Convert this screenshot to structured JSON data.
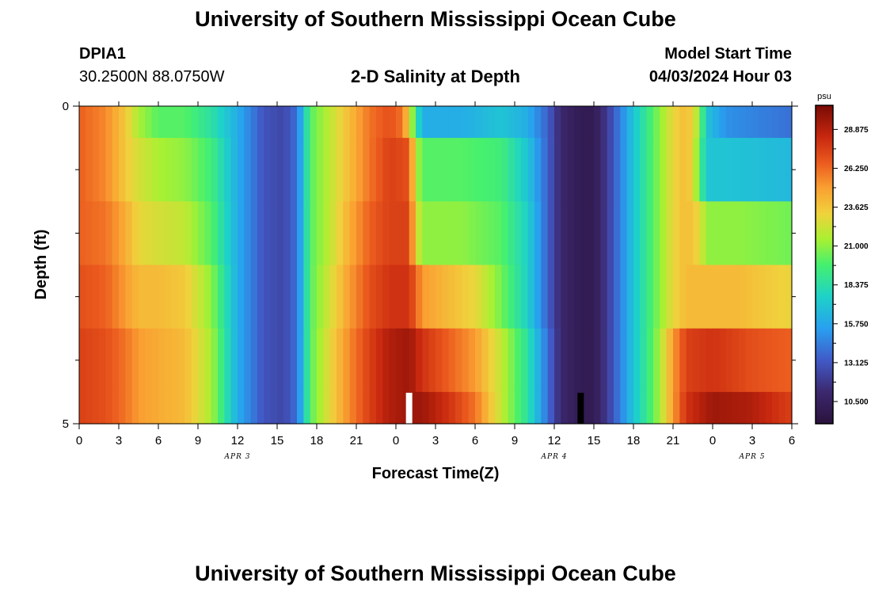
{
  "header": {
    "title": "University of Southern Mississippi Ocean Cube",
    "station_id": "DPIA1",
    "coords": "30.2500N  88.0750W",
    "subtitle": "2-D Salinity at Depth",
    "model_start_label": "Model Start Time",
    "model_start_value": "04/03/2024 Hour 03"
  },
  "footer": {
    "title": "University of Southern Mississippi Ocean Cube"
  },
  "chart_data": {
    "type": "heatmap",
    "title": "2-D Salinity at Depth",
    "xlabel": "Forecast Time(Z)",
    "ylabel": "Depth (ft)",
    "x_range_hours": [
      0,
      54
    ],
    "y_range": [
      0,
      5
    ],
    "y_tick_labels": [
      "0",
      "5"
    ],
    "x_tick_labels": [
      "0",
      "3",
      "6",
      "9",
      "12",
      "15",
      "18",
      "21",
      "0",
      "3",
      "6",
      "9",
      "12",
      "15",
      "18",
      "21",
      "0",
      "3",
      "6"
    ],
    "date_labels": [
      {
        "text": "APR 3",
        "hour": 12
      },
      {
        "text": "APR 4",
        "hour": 36
      },
      {
        "text": "APR 5",
        "hour": 51
      }
    ],
    "colorbar": {
      "unit": "psu",
      "min": 9.0,
      "max": 30.5,
      "tick_labels": [
        "10.500",
        "13.125",
        "15.750",
        "18.375",
        "21.000",
        "23.625",
        "26.250",
        "28.875"
      ],
      "tick_values": [
        10.5,
        13.125,
        15.75,
        18.375,
        21.0,
        23.625,
        26.25,
        28.875
      ]
    },
    "missing_markers": [
      {
        "hour": 25.0,
        "color": "#ffffff"
      },
      {
        "hour": 38.0,
        "color": "#000000"
      }
    ],
    "layers": [
      {
        "depth": [
          0.0,
          0.5
        ],
        "keyframes": [
          [
            0,
            26.5
          ],
          [
            2,
            25.5
          ],
          [
            3.5,
            23.5
          ],
          [
            4.5,
            21.5
          ],
          [
            6,
            20
          ],
          [
            8,
            20
          ],
          [
            10,
            18.5
          ],
          [
            12,
            16
          ],
          [
            14,
            13
          ],
          [
            15.5,
            12.5
          ],
          [
            16.5,
            14
          ],
          [
            17,
            17
          ],
          [
            17.5,
            20
          ],
          [
            19,
            22
          ],
          [
            20.5,
            24
          ],
          [
            22,
            26
          ],
          [
            23.5,
            27
          ],
          [
            24.5,
            26
          ],
          [
            25,
            23
          ],
          [
            25.5,
            19
          ],
          [
            26,
            16
          ],
          [
            29,
            16
          ],
          [
            32,
            17
          ],
          [
            34,
            16
          ],
          [
            35.5,
            13.5
          ],
          [
            36.5,
            11
          ],
          [
            38,
            10
          ],
          [
            39,
            10
          ],
          [
            40,
            12
          ],
          [
            41,
            14.5
          ],
          [
            42,
            17
          ],
          [
            43,
            19
          ],
          [
            44,
            21
          ],
          [
            45,
            23
          ],
          [
            46,
            24
          ],
          [
            46.5,
            23
          ],
          [
            47,
            21
          ],
          [
            47.5,
            17
          ],
          [
            49,
            15
          ],
          [
            54,
            14
          ]
        ]
      },
      {
        "depth": [
          0.5,
          1.5
        ],
        "keyframes": [
          [
            0,
            26.5
          ],
          [
            2,
            25.5
          ],
          [
            3.5,
            23.5
          ],
          [
            4.5,
            22.5
          ],
          [
            6,
            21.5
          ],
          [
            8,
            21
          ],
          [
            10,
            19.5
          ],
          [
            12,
            16
          ],
          [
            14,
            13
          ],
          [
            15.5,
            12.5
          ],
          [
            16.5,
            14
          ],
          [
            17,
            17
          ],
          [
            17.5,
            20
          ],
          [
            19,
            22
          ],
          [
            20.5,
            24
          ],
          [
            22,
            26
          ],
          [
            23.5,
            27.5
          ],
          [
            25,
            27
          ],
          [
            25.5,
            22
          ],
          [
            26,
            20
          ],
          [
            29,
            20
          ],
          [
            32,
            19.5
          ],
          [
            34,
            17
          ],
          [
            35.5,
            13.5
          ],
          [
            36.5,
            11
          ],
          [
            38,
            10
          ],
          [
            39,
            10
          ],
          [
            40,
            12
          ],
          [
            41,
            14.5
          ],
          [
            42,
            17
          ],
          [
            43,
            19
          ],
          [
            44,
            21
          ],
          [
            45,
            23
          ],
          [
            46,
            24
          ],
          [
            46.5,
            23
          ],
          [
            47,
            20
          ],
          [
            47.5,
            17
          ],
          [
            49,
            17
          ],
          [
            54,
            16.5
          ]
        ]
      },
      {
        "depth": [
          1.5,
          2.5
        ],
        "keyframes": [
          [
            0,
            26.5
          ],
          [
            2,
            26
          ],
          [
            3.5,
            24.5
          ],
          [
            4.5,
            23
          ],
          [
            6,
            22.5
          ],
          [
            8,
            22
          ],
          [
            10,
            20
          ],
          [
            12,
            16
          ],
          [
            14,
            13
          ],
          [
            15.5,
            12.5
          ],
          [
            16.5,
            14
          ],
          [
            17,
            17
          ],
          [
            17.5,
            20
          ],
          [
            19,
            22
          ],
          [
            20.5,
            24.5
          ],
          [
            22,
            26.5
          ],
          [
            23.5,
            27.5
          ],
          [
            25,
            27.5
          ],
          [
            25.5,
            23
          ],
          [
            26,
            21
          ],
          [
            29,
            21
          ],
          [
            32,
            20
          ],
          [
            34,
            17.5
          ],
          [
            35.5,
            13.5
          ],
          [
            36.5,
            11
          ],
          [
            38,
            10
          ],
          [
            39,
            10
          ],
          [
            40,
            12
          ],
          [
            41,
            14.5
          ],
          [
            42,
            17
          ],
          [
            43,
            19
          ],
          [
            44,
            21
          ],
          [
            45,
            23
          ],
          [
            46,
            24
          ],
          [
            47,
            23
          ],
          [
            47.5,
            21
          ],
          [
            50,
            21
          ],
          [
            54,
            20.5
          ]
        ]
      },
      {
        "depth": [
          2.5,
          3.5
        ],
        "keyframes": [
          [
            0,
            27
          ],
          [
            2,
            26.5
          ],
          [
            3.5,
            25
          ],
          [
            4.5,
            24
          ],
          [
            6,
            24
          ],
          [
            8,
            23.5
          ],
          [
            10,
            21
          ],
          [
            12,
            16
          ],
          [
            14,
            13
          ],
          [
            15.5,
            12.5
          ],
          [
            16.5,
            14
          ],
          [
            17,
            17
          ],
          [
            17.5,
            20
          ],
          [
            19,
            22.5
          ],
          [
            20.5,
            25
          ],
          [
            22,
            27
          ],
          [
            23.5,
            28
          ],
          [
            25,
            28
          ],
          [
            26,
            25
          ],
          [
            28,
            24
          ],
          [
            30,
            23
          ],
          [
            32,
            20.5
          ],
          [
            34,
            17.5
          ],
          [
            35.5,
            13.5
          ],
          [
            36.5,
            11
          ],
          [
            38,
            10
          ],
          [
            39,
            10
          ],
          [
            40,
            12
          ],
          [
            41,
            14.5
          ],
          [
            42,
            17
          ],
          [
            43,
            19
          ],
          [
            44,
            21
          ],
          [
            45,
            23
          ],
          [
            46,
            24
          ],
          [
            47,
            24
          ],
          [
            50,
            24
          ],
          [
            54,
            23
          ]
        ]
      },
      {
        "depth": [
          3.5,
          4.5
        ],
        "keyframes": [
          [
            0,
            27.5
          ],
          [
            2,
            27
          ],
          [
            3.5,
            26
          ],
          [
            4.5,
            25
          ],
          [
            6,
            24.5
          ],
          [
            8,
            24
          ],
          [
            10,
            21.5
          ],
          [
            12,
            16
          ],
          [
            14,
            13
          ],
          [
            15.5,
            12.5
          ],
          [
            16.5,
            14
          ],
          [
            17,
            17
          ],
          [
            17.5,
            20
          ],
          [
            19,
            23
          ],
          [
            20.5,
            25.5
          ],
          [
            22,
            27.5
          ],
          [
            23.5,
            29
          ],
          [
            25,
            29.5
          ],
          [
            26,
            28
          ],
          [
            28,
            26.5
          ],
          [
            30,
            25
          ],
          [
            32,
            22
          ],
          [
            34,
            18.5
          ],
          [
            35.5,
            14
          ],
          [
            36.5,
            11
          ],
          [
            38,
            10
          ],
          [
            39,
            10
          ],
          [
            40,
            12
          ],
          [
            41,
            14.5
          ],
          [
            42,
            17
          ],
          [
            43,
            19
          ],
          [
            44,
            21.5
          ],
          [
            45,
            25
          ],
          [
            46,
            27.5
          ],
          [
            48,
            28
          ],
          [
            51,
            27
          ],
          [
            54,
            26.5
          ]
        ]
      },
      {
        "depth": [
          4.5,
          5.0
        ],
        "keyframes": [
          [
            0,
            27.5
          ],
          [
            2,
            27
          ],
          [
            3.5,
            26
          ],
          [
            4.5,
            25
          ],
          [
            6,
            24.5
          ],
          [
            8,
            24
          ],
          [
            10,
            21.5
          ],
          [
            12,
            16
          ],
          [
            14,
            13
          ],
          [
            15.5,
            12.5
          ],
          [
            16.5,
            14
          ],
          [
            17,
            17
          ],
          [
            17.5,
            20
          ],
          [
            19,
            23
          ],
          [
            20.5,
            25.5
          ],
          [
            22,
            27.5
          ],
          [
            23.5,
            29
          ],
          [
            25,
            29.5
          ],
          [
            26,
            29.5
          ],
          [
            28,
            28
          ],
          [
            30,
            26
          ],
          [
            32,
            22
          ],
          [
            34,
            18.5
          ],
          [
            35.5,
            14
          ],
          [
            36.5,
            11
          ],
          [
            38,
            10
          ],
          [
            39,
            10
          ],
          [
            40,
            12
          ],
          [
            41,
            14.5
          ],
          [
            42,
            17
          ],
          [
            43,
            19
          ],
          [
            44,
            21.5
          ],
          [
            45,
            25
          ],
          [
            46,
            28
          ],
          [
            48,
            29.5
          ],
          [
            51,
            29
          ],
          [
            54,
            27.5
          ]
        ]
      }
    ]
  }
}
